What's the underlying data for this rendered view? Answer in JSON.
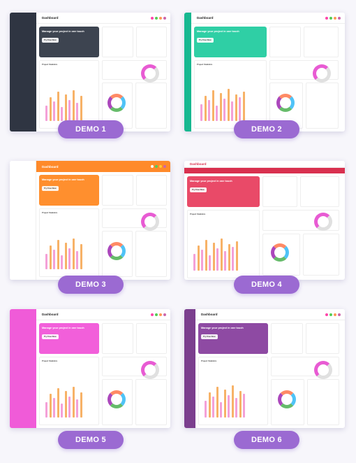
{
  "demos": [
    {
      "label": "DEMO 1",
      "title": "Dashboard",
      "hero": "Manage your project in one touch",
      "accent": "#2f3542",
      "hero_bg": "#3d4450",
      "side_bg": "#2f3542"
    },
    {
      "label": "DEMO 2",
      "title": "Dashboard",
      "hero": "Manage your project in one touch",
      "accent": "#1fc8a0",
      "hero_bg": "#2fcfa5",
      "side_bg": "#17b890"
    },
    {
      "label": "DEMO 3",
      "title": "Dashboard",
      "hero": "Manage your project in one touch",
      "accent": "#ff8a2a",
      "hero_bg": "#ff8f2e",
      "side_bg": "#ffffff"
    },
    {
      "label": "DEMO 4",
      "title": "Dashboard",
      "hero": "Manage your project in one touch",
      "accent": "#d9304f",
      "hero_bg": "#e94a68",
      "side_bg": "#ffffff"
    },
    {
      "label": "DEMO 5",
      "title": "Dashboard",
      "hero": "Manage your project in one touch",
      "accent": "#f05bd8",
      "hero_bg": "#f25fda",
      "side_bg": "#f05bd8"
    },
    {
      "label": "DEMO 6",
      "title": "Dashboard",
      "hero": "Manage your project in one touch",
      "accent": "#7b3f8e",
      "hero_bg": "#8e4aa3",
      "side_bg": "#7b3f8e"
    }
  ],
  "hero_button": "Try Free Now",
  "stats_title": "Project Statistics",
  "chart_colors": {
    "bar_a": "#f4a0d8",
    "bar_b": "#f7b267",
    "ring": "#e85bd3"
  }
}
